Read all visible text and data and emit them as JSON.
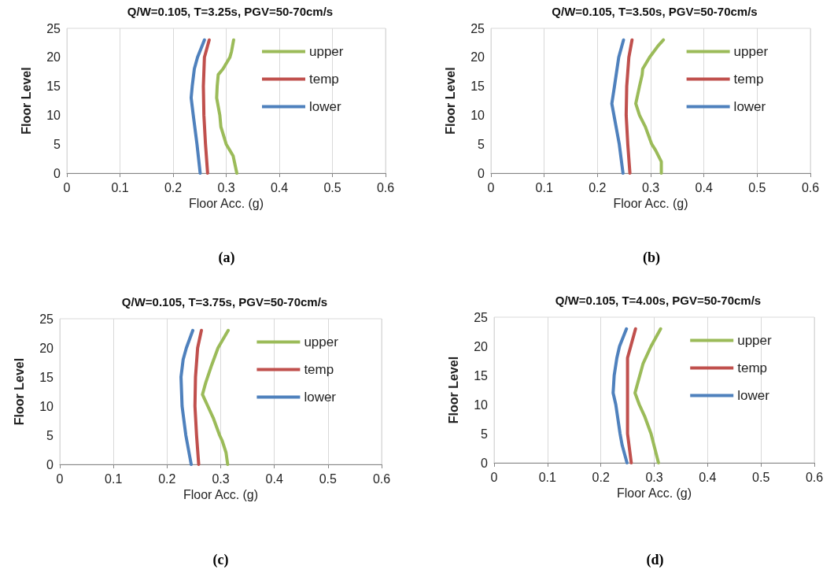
{
  "chart_data": [
    {
      "type": "line",
      "title": "Q/W=0.105, T=3.25s, PGV=50-70cm/s",
      "xlabel": "Floor Acc. (g)",
      "ylabel": "Floor Level",
      "annotations": [
        "(a)"
      ],
      "xlim": [
        0,
        0.6
      ],
      "xticks": [
        0,
        0.1,
        0.2,
        0.3,
        0.4,
        0.5,
        0.6
      ],
      "ylim": [
        0,
        25
      ],
      "yticks": [
        0,
        5,
        10,
        15,
        20,
        25
      ],
      "grid": "x",
      "legend": "top right",
      "marker": "none",
      "line_style": "solid",
      "series": [
        {
          "name": "upper",
          "color": "#9bbb59",
          "x": [
            0.32,
            0.313,
            0.3,
            0.29,
            0.288,
            0.282,
            0.283,
            0.285,
            0.294,
            0.307,
            0.31,
            0.314
          ],
          "values": [
            0,
            3,
            5,
            8,
            10,
            13,
            15,
            17,
            18,
            20,
            21,
            23
          ]
        },
        {
          "name": "temp",
          "color": "#c0504d",
          "x": [
            0.265,
            0.261,
            0.258,
            0.257,
            0.259,
            0.268
          ],
          "values": [
            0,
            5,
            10,
            15,
            20,
            23
          ]
        },
        {
          "name": "lower",
          "color": "#4f81bd",
          "x": [
            0.251,
            0.245,
            0.238,
            0.234,
            0.236,
            0.24,
            0.246,
            0.259
          ],
          "values": [
            0,
            5,
            10,
            13,
            15,
            18,
            20,
            23
          ]
        }
      ]
    },
    {
      "type": "line",
      "title": "Q/W=0.105, T=3.50s, PGV=50-70cm/s",
      "xlabel": "Floor Acc. (g)",
      "ylabel": "Floor Level",
      "annotations": [
        "(b)"
      ],
      "xlim": [
        0,
        0.6
      ],
      "xticks": [
        0,
        0.1,
        0.2,
        0.3,
        0.4,
        0.5,
        0.6
      ],
      "ylim": [
        0,
        25
      ],
      "yticks": [
        0,
        5,
        10,
        15,
        20,
        25
      ],
      "grid": "x",
      "legend": "top right",
      "marker": "none",
      "line_style": "solid",
      "series": [
        {
          "name": "upper",
          "color": "#9bbb59",
          "x": [
            0.32,
            0.32,
            0.309,
            0.302,
            0.29,
            0.279,
            0.272,
            0.279,
            0.284,
            0.285,
            0.298,
            0.314,
            0.324
          ],
          "values": [
            0,
            2,
            4,
            5,
            8,
            10,
            12,
            15,
            17,
            18,
            20,
            22,
            23
          ]
        },
        {
          "name": "temp",
          "color": "#c0504d",
          "x": [
            0.261,
            0.257,
            0.254,
            0.255,
            0.259,
            0.265
          ],
          "values": [
            0,
            5,
            10,
            15,
            20,
            23
          ]
        },
        {
          "name": "lower",
          "color": "#4f81bd",
          "x": [
            0.248,
            0.241,
            0.231,
            0.227,
            0.232,
            0.24,
            0.249
          ],
          "values": [
            0,
            5,
            10,
            12,
            15,
            20,
            23
          ]
        }
      ]
    },
    {
      "type": "line",
      "title": "Q/W=0.105, T=3.75s, PGV=50-70cm/s",
      "xlabel": "Floor Acc. (g)",
      "ylabel": "Floor Level",
      "annotations": [
        "(c)"
      ],
      "xlim": [
        0,
        0.6
      ],
      "xticks": [
        0,
        0.1,
        0.2,
        0.3,
        0.4,
        0.5,
        0.6
      ],
      "ylim": [
        0,
        25
      ],
      "yticks": [
        0,
        5,
        10,
        15,
        20,
        25
      ],
      "grid": "x",
      "legend": "top right",
      "marker": "none",
      "line_style": "solid",
      "series": [
        {
          "name": "upper",
          "color": "#9bbb59",
          "x": [
            0.313,
            0.31,
            0.303,
            0.298,
            0.286,
            0.276,
            0.266,
            0.272,
            0.283,
            0.295,
            0.314
          ],
          "values": [
            0,
            2,
            4,
            5,
            8,
            10,
            12,
            14,
            17,
            20,
            23
          ]
        },
        {
          "name": "temp",
          "color": "#c0504d",
          "x": [
            0.259,
            0.255,
            0.252,
            0.253,
            0.257,
            0.264
          ],
          "values": [
            0,
            5,
            10,
            15,
            20,
            23
          ]
        },
        {
          "name": "lower",
          "color": "#4f81bd",
          "x": [
            0.245,
            0.235,
            0.228,
            0.226,
            0.23,
            0.236,
            0.248
          ],
          "values": [
            0,
            5,
            10,
            15,
            18,
            20,
            23
          ]
        }
      ]
    },
    {
      "type": "line",
      "title": "Q/W=0.105, T=4.00s, PGV=50-70cm/s",
      "xlabel": "Floor Acc. (g)",
      "ylabel": "Floor Level",
      "annotations": [
        "(d)"
      ],
      "xlim": [
        0,
        0.6
      ],
      "xticks": [
        0,
        0.1,
        0.2,
        0.3,
        0.4,
        0.5,
        0.6
      ],
      "ylim": [
        0,
        25
      ],
      "yticks": [
        0,
        5,
        10,
        15,
        20,
        25
      ],
      "grid": "x",
      "legend": "top right",
      "marker": "none",
      "line_style": "solid",
      "series": [
        {
          "name": "upper",
          "color": "#9bbb59",
          "x": [
            0.308,
            0.294,
            0.282,
            0.272,
            0.264,
            0.27,
            0.279,
            0.294,
            0.312
          ],
          "values": [
            0,
            5,
            8,
            10,
            12,
            14,
            17,
            20,
            23
          ]
        },
        {
          "name": "temp",
          "color": "#c0504d",
          "x": [
            0.257,
            0.25,
            0.25,
            0.25,
            0.25,
            0.256,
            0.265
          ],
          "values": [
            0,
            5,
            10,
            15,
            18,
            20,
            23
          ]
        },
        {
          "name": "lower",
          "color": "#4f81bd",
          "x": [
            0.249,
            0.24,
            0.236,
            0.228,
            0.223,
            0.225,
            0.23,
            0.235,
            0.248
          ],
          "values": [
            0,
            3,
            5,
            10,
            12,
            15,
            18,
            20,
            23
          ]
        }
      ]
    }
  ]
}
